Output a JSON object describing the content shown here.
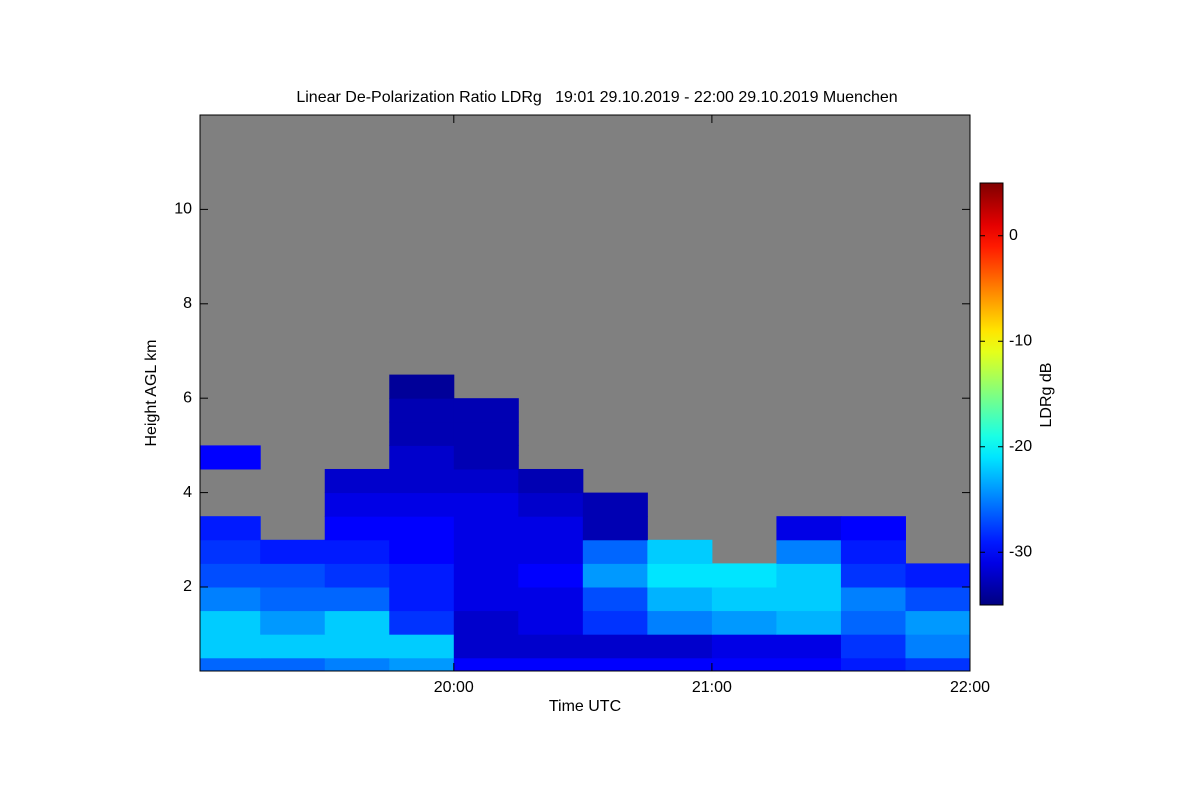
{
  "chart_data": {
    "type": "heatmap",
    "title": "Linear De-Polarization Ratio LDRg   19:01 29.10.2019 - 22:00 29.10.2019 Muenchen",
    "x_label": "Time UTC",
    "y_label": "Height AGL km",
    "colorbar_label": "LDRg dB",
    "xlim": [
      19.0167,
      22
    ],
    "xticks": [
      {
        "value": 20,
        "label": "20:00"
      },
      {
        "value": 21,
        "label": "21:00"
      },
      {
        "value": 22,
        "label": "22:00"
      }
    ],
    "ylim": [
      0.22,
      12
    ],
    "yticks": [
      2,
      4,
      6,
      8,
      10
    ],
    "x_bins": [
      19.0167,
      19.25,
      19.5,
      19.75,
      20,
      20.25,
      20.5,
      20.75,
      21,
      21.25,
      21.5,
      21.75,
      22
    ],
    "y_bins": [
      0.22,
      0.5,
      1,
      1.5,
      2,
      2.5,
      3,
      3.5,
      4,
      4.5,
      5,
      5.5,
      6,
      6.5
    ],
    "values": [
      [
        -26,
        -26,
        -25,
        -24,
        -30,
        -30,
        -30,
        -30,
        -30,
        -30,
        -29,
        -28
      ],
      [
        -22,
        -22,
        -22,
        -22,
        -32,
        -32,
        -32,
        -32,
        -31,
        -31,
        -28,
        -25
      ],
      [
        -22,
        -24,
        -22,
        -28,
        -32,
        -31,
        -28,
        -25,
        -24,
        -23,
        -26,
        -24
      ],
      [
        -25,
        -26,
        -26,
        -29,
        -31,
        -31,
        -27,
        -23,
        -22,
        -22,
        -25,
        -27
      ],
      [
        -27,
        -27,
        -28,
        -29,
        -31,
        -30,
        -24,
        -21,
        -21,
        -22,
        -28,
        -29
      ],
      [
        -28,
        -29,
        -29,
        -30,
        -31,
        -31,
        -26,
        -22,
        null,
        -25,
        -29,
        null
      ],
      [
        -29,
        null,
        -30,
        -30,
        -31,
        -31,
        -33,
        null,
        null,
        -31,
        -30,
        null
      ],
      [
        null,
        null,
        -31,
        -31,
        -31,
        -32,
        -33,
        null,
        null,
        null,
        null,
        null
      ],
      [
        null,
        null,
        -32,
        -32,
        -32,
        -33,
        null,
        null,
        null,
        null,
        null,
        null
      ],
      [
        -30,
        null,
        null,
        -32,
        -33,
        null,
        null,
        null,
        null,
        null,
        null,
        null
      ],
      [
        null,
        null,
        null,
        -33,
        -33,
        null,
        null,
        null,
        null,
        null,
        null,
        null
      ],
      [
        null,
        null,
        null,
        -33,
        -33,
        null,
        null,
        null,
        null,
        null,
        null,
        null
      ],
      [
        null,
        null,
        null,
        -34,
        null,
        null,
        null,
        null,
        null,
        null,
        null,
        null
      ]
    ],
    "zlim": [
      -35,
      5
    ],
    "zticks": [
      -30,
      -20,
      -10,
      0
    ],
    "colormap": "jet",
    "missing_color": "#808080"
  }
}
